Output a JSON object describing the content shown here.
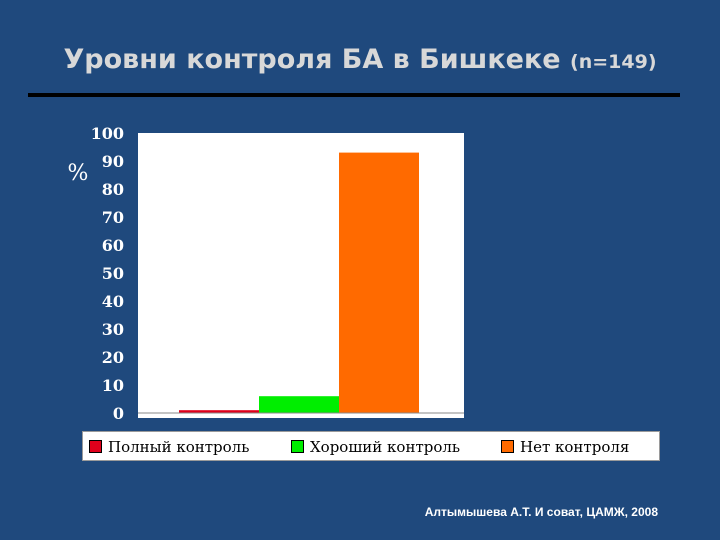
{
  "slide": {
    "title": "Уровни контроля БА в Бишкеке",
    "title_suffix": "(n=149)",
    "source": "Алтымышева А.Т. И соват, ЦАМЖ, 2008"
  },
  "chart_data": {
    "type": "bar",
    "categories": [
      "Полный контроль",
      "Хороший контроль",
      "Нет контроля"
    ],
    "values": [
      1,
      6,
      93
    ],
    "colors": [
      "#e0001b",
      "#00ee00",
      "#ff6a00"
    ],
    "title": "",
    "xlabel": "",
    "ylabel": "%",
    "ylim": [
      0,
      100
    ],
    "yticks": [
      "0",
      "10",
      "20",
      "30",
      "40",
      "50",
      "60",
      "70",
      "80",
      "90",
      "100"
    ],
    "grid": false,
    "legend_position": "bottom"
  }
}
